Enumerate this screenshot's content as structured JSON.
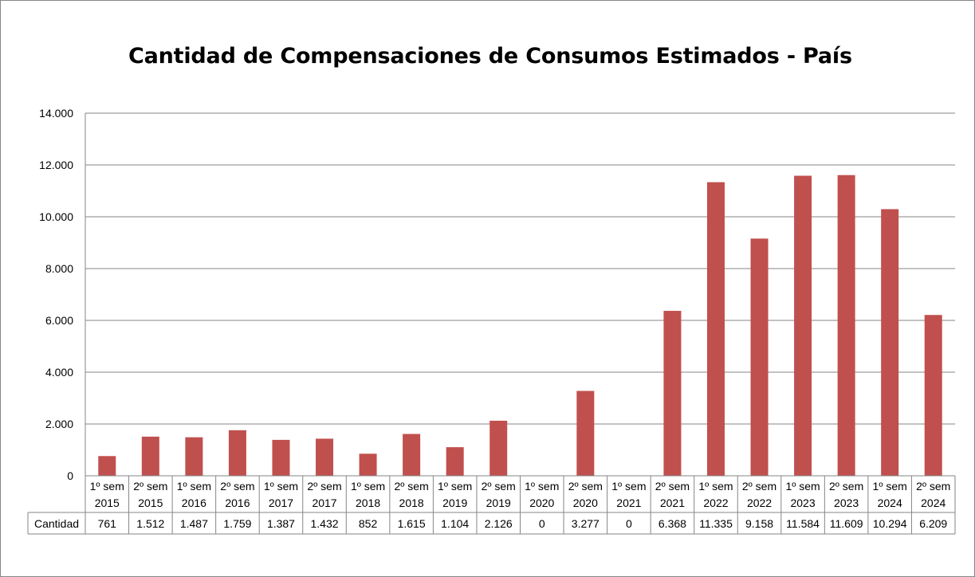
{
  "chart_data": {
    "type": "bar",
    "title": "Cantidad de Compensaciones de Consumos Estimados - País",
    "categories": [
      [
        "1º sem",
        "2015"
      ],
      [
        "2º sem",
        "2015"
      ],
      [
        "1º sem",
        "2016"
      ],
      [
        "2º sem",
        "2016"
      ],
      [
        "1º sem",
        "2017"
      ],
      [
        "2º sem",
        "2017"
      ],
      [
        "1º sem",
        "2018"
      ],
      [
        "2º sem",
        "2018"
      ],
      [
        "1º sem",
        "2019"
      ],
      [
        "2º sem",
        "2019"
      ],
      [
        "1º sem",
        "2020"
      ],
      [
        "2º sem",
        "2020"
      ],
      [
        "1º sem",
        "2021"
      ],
      [
        "2º sem",
        "2021"
      ],
      [
        "1º sem",
        "2022"
      ],
      [
        "2º sem",
        "2022"
      ],
      [
        "1º sem",
        "2023"
      ],
      [
        "2º sem",
        "2023"
      ],
      [
        "1º sem",
        "2024"
      ],
      [
        "2º sem",
        "2024"
      ]
    ],
    "series": [
      {
        "name": "Cantidad",
        "color": "#c0504d",
        "values": [
          761,
          1512,
          1487,
          1759,
          1387,
          1432,
          852,
          1615,
          1104,
          2126,
          0,
          3277,
          0,
          6368,
          11335,
          9158,
          11584,
          11609,
          10294,
          6209
        ],
        "labels": [
          "761",
          "1.512",
          "1.487",
          "1.759",
          "1.387",
          "1.432",
          "852",
          "1.615",
          "1.104",
          "2.126",
          "0",
          "3.277",
          "0",
          "6.368",
          "11.335",
          "9.158",
          "11.584",
          "11.609",
          "10.294",
          "6.209"
        ]
      }
    ],
    "ylim": [
      0,
      14000
    ],
    "yticks": [
      0,
      2000,
      4000,
      6000,
      8000,
      10000,
      12000,
      14000
    ],
    "ytick_labels": [
      "0",
      "2.000",
      "4.000",
      "6.000",
      "8.000",
      "10.000",
      "12.000",
      "14.000"
    ],
    "grid": true,
    "data_table": true,
    "legend": "none"
  }
}
